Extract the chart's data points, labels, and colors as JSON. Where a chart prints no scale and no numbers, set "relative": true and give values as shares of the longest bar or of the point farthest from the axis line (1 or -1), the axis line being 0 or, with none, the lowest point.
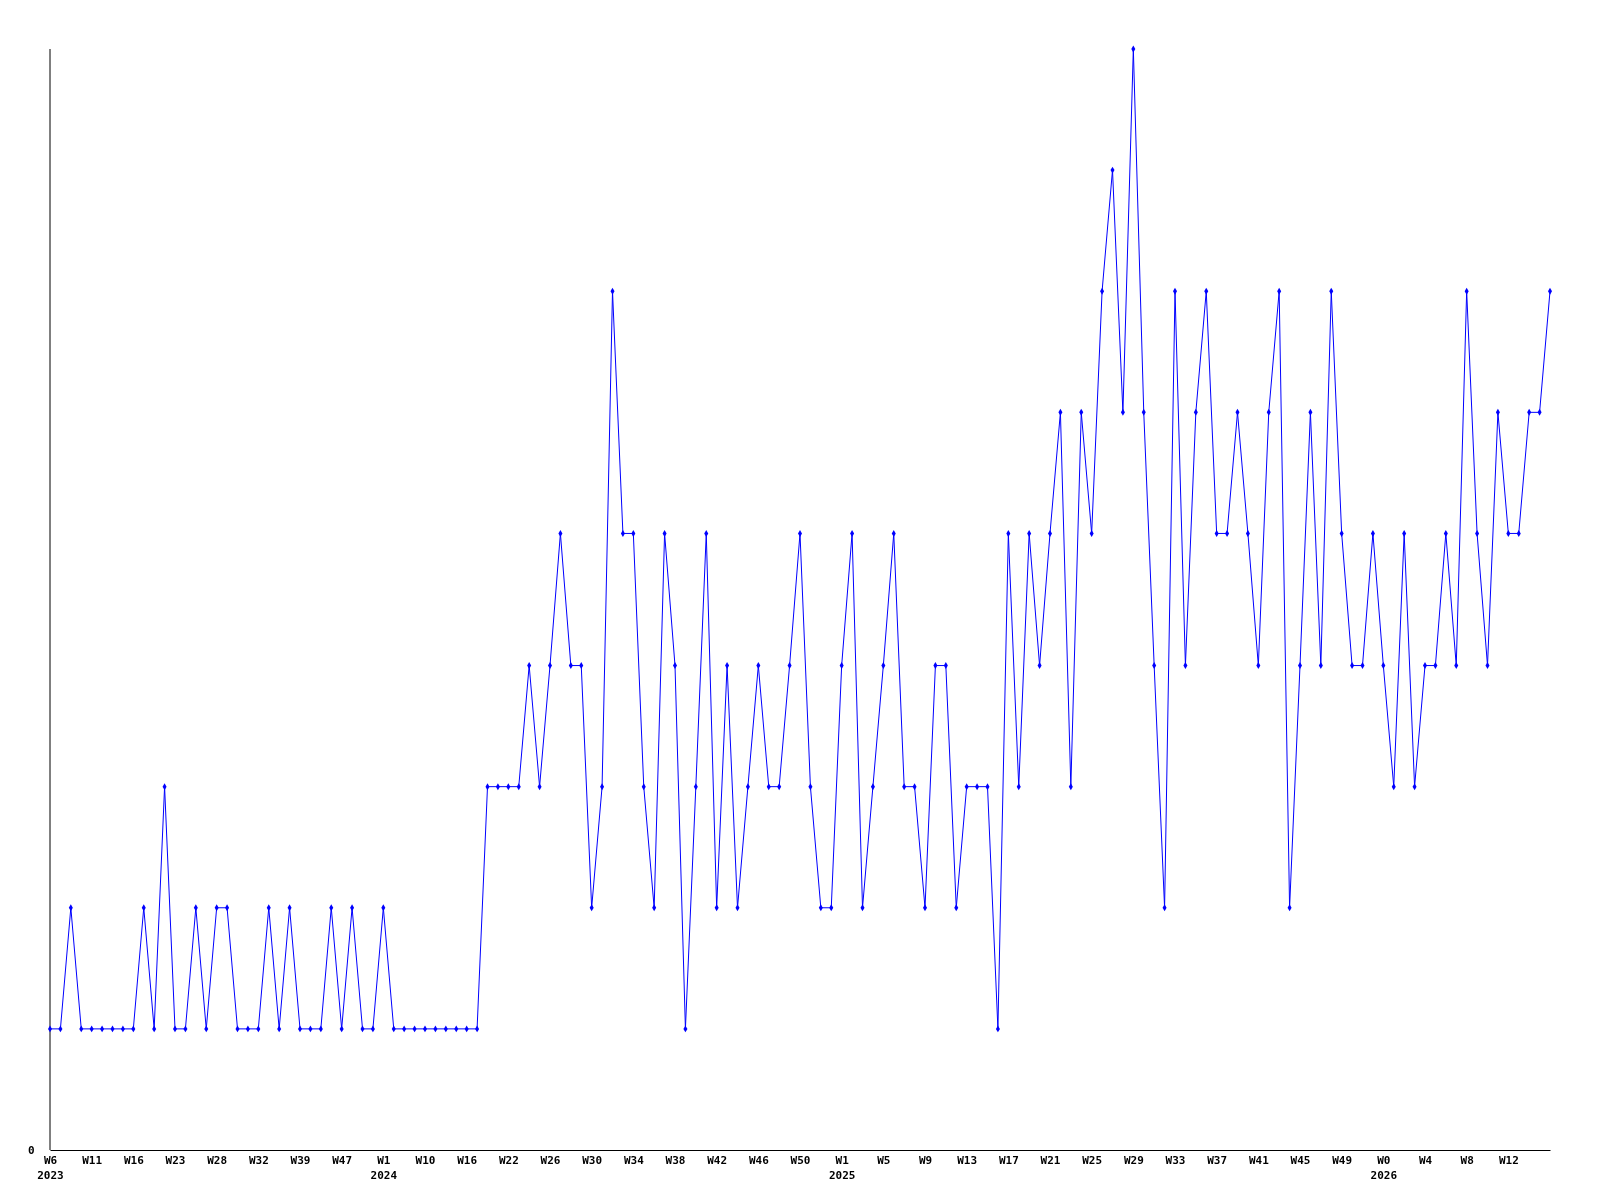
{
  "chart_data": {
    "type": "line",
    "relative": true,
    "marker": "diamond",
    "line_style": "solid",
    "annotations": [
      "0"
    ],
    "categories": [
      "W6\n2023",
      null,
      null,
      null,
      "W11",
      null,
      null,
      null,
      "W16",
      null,
      null,
      null,
      "W23",
      null,
      null,
      null,
      "W28",
      null,
      null,
      null,
      "W32",
      null,
      null,
      null,
      "W39",
      null,
      null,
      null,
      "W47",
      null,
      null,
      null,
      "W1\n2024",
      null,
      null,
      null,
      "W10",
      null,
      null,
      null,
      "W16",
      null,
      null,
      null,
      "W22",
      null,
      null,
      null,
      "W26",
      null,
      null,
      null,
      "W30",
      null,
      null,
      null,
      "W34",
      null,
      null,
      null,
      "W38",
      null,
      null,
      null,
      "W42",
      null,
      null,
      null,
      "W46",
      null,
      null,
      null,
      "W50",
      null,
      null,
      null,
      "W1\n2025",
      null,
      null,
      null,
      "W5",
      null,
      null,
      null,
      "W9",
      null,
      null,
      null,
      "W13",
      null,
      null,
      null,
      "W17",
      null,
      null,
      null,
      "W21",
      null,
      null,
      null,
      "W25",
      null,
      null,
      null,
      "W29",
      null,
      null,
      null,
      "W33",
      null,
      null,
      null,
      "W37",
      null,
      null,
      null,
      "W41",
      null,
      null,
      null,
      "W45",
      null,
      null,
      null,
      "W49",
      null,
      null,
      null,
      "W0\n2026",
      null,
      null,
      null,
      "W4",
      null,
      null,
      null,
      "W8",
      null,
      null,
      null,
      "W12",
      null,
      null,
      null,
      null
    ],
    "series": [
      {
        "color": "#0000ff",
        "values": [
          0.11,
          0.11,
          0.22,
          0.11,
          0.11,
          0.11,
          0.11,
          0.11,
          0.11,
          0.22,
          0.11,
          0.33,
          0.11,
          0.11,
          0.22,
          0.11,
          0.22,
          0.22,
          0.11,
          0.11,
          0.11,
          0.22,
          0.11,
          0.22,
          0.11,
          0.11,
          0.11,
          0.22,
          0.11,
          0.22,
          0.11,
          0.11,
          0.22,
          0.11,
          0.11,
          0.11,
          0.11,
          0.11,
          0.11,
          0.11,
          0.11,
          0.11,
          0.33,
          0.33,
          0.33,
          0.33,
          0.44,
          0.33,
          0.44,
          0.56,
          0.44,
          0.44,
          0.22,
          0.33,
          0.78,
          0.56,
          0.56,
          0.33,
          0.22,
          0.56,
          0.44,
          0.11,
          0.33,
          0.56,
          0.22,
          0.44,
          0.22,
          0.33,
          0.44,
          0.33,
          0.33,
          0.44,
          0.56,
          0.33,
          0.22,
          0.22,
          0.44,
          0.56,
          0.22,
          0.33,
          0.44,
          0.56,
          0.33,
          0.33,
          0.22,
          0.44,
          0.44,
          0.22,
          0.33,
          0.33,
          0.33,
          0.11,
          0.56,
          0.33,
          0.56,
          0.44,
          0.56,
          0.67,
          0.33,
          0.67,
          0.56,
          0.78,
          0.89,
          0.67,
          1,
          0.67,
          0.44,
          0.22,
          0.78,
          0.44,
          0.67,
          0.78,
          0.56,
          0.56,
          0.67,
          0.56,
          0.44,
          0.67,
          0.78,
          0.22,
          0.44,
          0.67,
          0.44,
          0.78,
          0.56,
          0.44,
          0.44,
          0.56,
          0.44,
          0.33,
          0.56,
          0.33,
          0.44,
          0.44,
          0.56,
          0.44,
          0.78,
          0.56,
          0.44,
          0.67,
          0.56,
          0.56,
          0.67,
          0.67,
          0.78
        ]
      }
    ]
  }
}
